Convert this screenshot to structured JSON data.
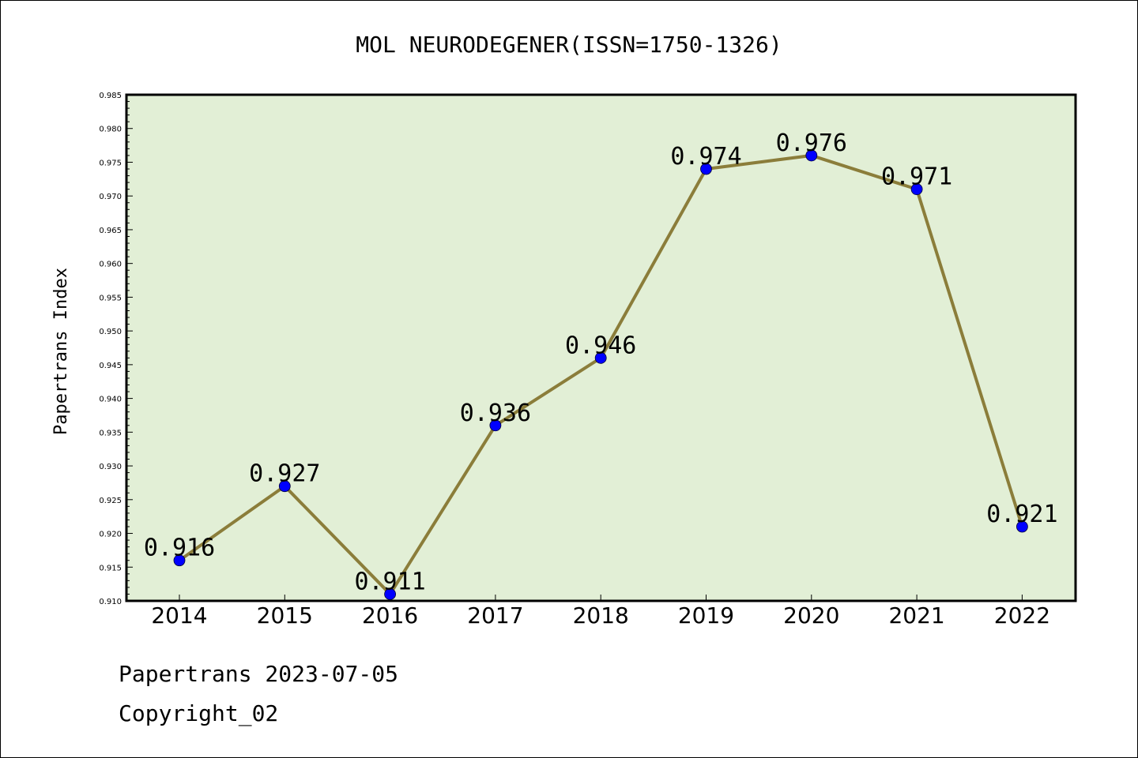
{
  "chart_data": {
    "type": "line",
    "title": "MOL NEURODEGENER(ISSN=1750-1326)",
    "xlabel": "",
    "ylabel": "Papertrans Index",
    "categories": [
      "2014",
      "2015",
      "2016",
      "2017",
      "2018",
      "2019",
      "2020",
      "2021",
      "2022"
    ],
    "series": [
      {
        "values": [
          0.916,
          0.927,
          0.911,
          0.936,
          0.946,
          0.974,
          0.976,
          0.971,
          0.921
        ],
        "data_labels": [
          "0.916",
          "0.927",
          "0.911",
          "0.936",
          "0.946",
          "0.974",
          "0.976",
          "0.971",
          "0.921"
        ]
      }
    ],
    "ylim": [
      0.91,
      0.985
    ],
    "yticks": [
      "0.910",
      "0.915",
      "0.920",
      "0.925",
      "0.930",
      "0.935",
      "0.940",
      "0.945",
      "0.950",
      "0.955",
      "0.960",
      "0.965",
      "0.970",
      "0.975",
      "0.980",
      "0.985"
    ],
    "grid": false,
    "legend": "none",
    "colors": {
      "plot_background": "#e2efd6",
      "line": "#8b7d3a",
      "marker": "#0000ff",
      "axis": "#000000"
    }
  },
  "footer": {
    "line1": "Papertrans 2023-07-05",
    "line2": "Copyright_02"
  }
}
